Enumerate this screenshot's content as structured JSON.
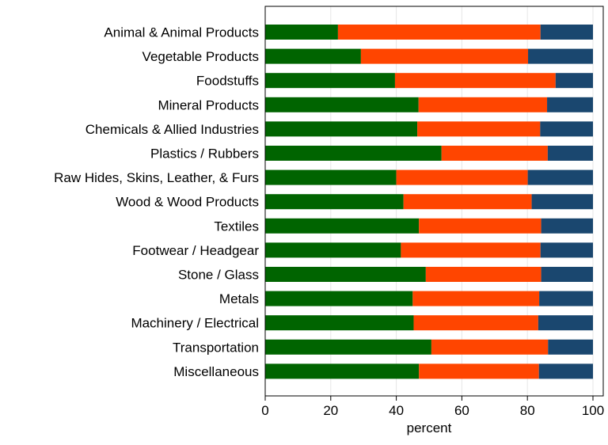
{
  "chart_data": {
    "type": "bar",
    "orientation": "horizontal",
    "stacked": true,
    "title": "",
    "xlabel": "percent",
    "ylabel": "",
    "xlim": [
      0,
      100
    ],
    "xticks": [
      0,
      20,
      40,
      60,
      80,
      100
    ],
    "grid": true,
    "legend": "none",
    "categories": [
      "Animal & Animal Products",
      "Vegetable Products",
      "Foodstuffs",
      "Mineral Products",
      "Chemicals & Allied Industries",
      "Plastics / Rubbers",
      "Raw Hides, Skins, Leather, & Furs",
      "Wood & Wood Products",
      "Textiles",
      "Footwear / Headgear",
      "Stone / Glass",
      "Metals",
      "Machinery / Electrical",
      "Transportation",
      "Miscellaneous"
    ],
    "series": [
      {
        "color": "#006400",
        "values": [
          22.2,
          29.2,
          39.6,
          46.8,
          46.4,
          53.8,
          40.0,
          42.2,
          46.9,
          41.4,
          49.0,
          45.0,
          45.3,
          50.7,
          46.9
        ]
      },
      {
        "color": "#ff4500",
        "values": [
          61.8,
          51.0,
          49.0,
          39.2,
          37.5,
          32.4,
          40.1,
          39.1,
          37.3,
          42.6,
          35.2,
          38.6,
          38.0,
          35.6,
          36.6
        ]
      },
      {
        "color": "#1a476f",
        "values": [
          16.0,
          19.8,
          11.4,
          14.0,
          16.1,
          13.8,
          19.9,
          18.7,
          15.8,
          16.0,
          15.8,
          16.4,
          16.7,
          13.7,
          16.5
        ]
      }
    ]
  }
}
